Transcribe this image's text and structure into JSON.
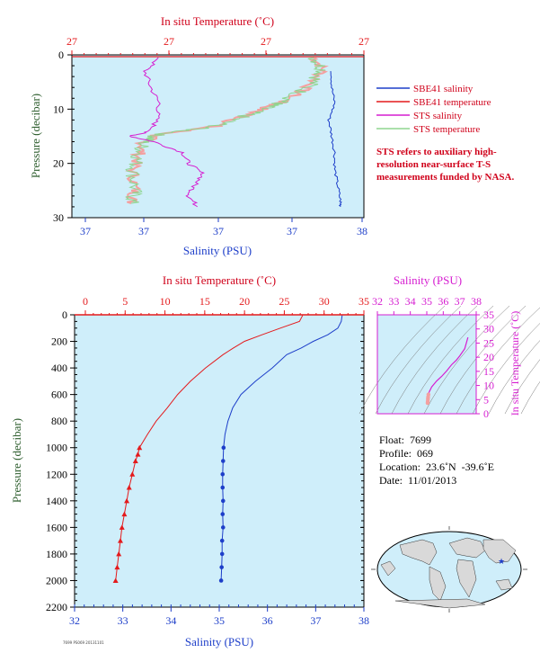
{
  "colors": {
    "panel_bg": "#cfeefa",
    "salinity": "#1d3ec9",
    "temperature": "#e41a1c",
    "sts_salinity": "#d61fd1",
    "sts_temperature": "#8fd58f",
    "sts_temp_pink": "#f4a0a0",
    "pressure_axis": "#2e5e2e",
    "map_land": "#d9d9d9",
    "map_ocean": "#cfeefa"
  },
  "top_chart": {
    "top_axis_label": "In situ Temperature (˚C)",
    "top_ticks": [
      "27",
      "27",
      "27",
      "27"
    ],
    "bottom_axis_label": "Salinity (PSU)",
    "bottom_ticks": [
      "37",
      "37",
      "37",
      "37",
      "38"
    ],
    "y_axis_label": "Pressure (decibar)",
    "y_ticks": [
      "0",
      "10",
      "20",
      "30"
    ],
    "legend": [
      {
        "label": "SBE41 salinity",
        "color": "#1d3ec9"
      },
      {
        "label": "SBE41 temperature",
        "color": "#e41a1c"
      },
      {
        "label": "STS salinity",
        "color": "#d61fd1"
      },
      {
        "label": "STS temperature",
        "color": "#8fd58f"
      }
    ],
    "note": "STS refers to auxiliary high-resolution near-surface T-S measurements funded by NASA."
  },
  "main_chart": {
    "top_axis_label": "In situ Temperature (˚C)",
    "top_ticks": [
      "0",
      "5",
      "10",
      "15",
      "20",
      "25",
      "30",
      "35"
    ],
    "bottom_axis_label": "Salinity (PSU)",
    "bottom_ticks": [
      "32",
      "33",
      "34",
      "35",
      "36",
      "37",
      "38"
    ],
    "y_axis_label": "Pressure (decibar)",
    "y_ticks": [
      "0",
      "200",
      "400",
      "600",
      "800",
      "1000",
      "1200",
      "1400",
      "1600",
      "1800",
      "2000",
      "2200"
    ]
  },
  "ts_chart": {
    "top_axis_label": "Salinity (PSU)",
    "top_ticks": [
      "32",
      "33",
      "34",
      "35",
      "36",
      "37",
      "38"
    ],
    "right_axis_label": "In situ Temperature (˚C)",
    "right_ticks": [
      "0",
      "5",
      "10",
      "15",
      "20",
      "25",
      "30",
      "35"
    ]
  },
  "float_info": {
    "float": "Float:  7699",
    "profile": "Profile:  069",
    "location": "Location:  23.6˚N  -39.6˚E",
    "date": "Date:  11/01/2013"
  },
  "footer_stamp": "7699 PS069 20131101",
  "chart_data": [
    {
      "type": "line",
      "panel": "near-surface profile",
      "x_axis": "Salinity (PSU)",
      "xlim": [
        37,
        38
      ],
      "ylim": [
        30,
        0
      ],
      "series": [
        {
          "name": "SBE41 salinity",
          "pressure": [
            3,
            6,
            9,
            12,
            15,
            18,
            21,
            24,
            27,
            28
          ],
          "values": [
            37.89,
            37.89,
            37.9,
            37.88,
            37.89,
            37.9,
            37.9,
            37.91,
            37.92,
            37.92
          ]
        },
        {
          "name": "STS salinity",
          "pressure": [
            0.5,
            3,
            6,
            9,
            12,
            14,
            15,
            16,
            18,
            20,
            22,
            24,
            26,
            28
          ],
          "values": [
            37.3,
            37.25,
            37.27,
            37.3,
            37.29,
            37.27,
            37.2,
            37.28,
            37.38,
            37.4,
            37.45,
            37.42,
            37.4,
            37.43
          ]
        }
      ]
    },
    {
      "type": "line",
      "panel": "full profile",
      "x_axis": "Salinity (PSU) / In situ Temperature (˚C)",
      "salinity_xlim": [
        32,
        38
      ],
      "temperature_xlim": [
        0,
        35
      ],
      "ylim": [
        2200,
        0
      ],
      "series": [
        {
          "name": "Salinity",
          "pressure": [
            5,
            50,
            100,
            150,
            200,
            250,
            300,
            400,
            500,
            600,
            700,
            800,
            900,
            1000,
            1100,
            1200,
            1300,
            1400,
            1500,
            1600,
            1700,
            1800,
            1900,
            2000
          ],
          "values": [
            37.55,
            37.53,
            37.46,
            37.25,
            36.95,
            36.7,
            36.4,
            36.1,
            35.75,
            35.45,
            35.28,
            35.18,
            35.12,
            35.09,
            35.08,
            35.07,
            35.07,
            35.08,
            35.07,
            35.08,
            35.06,
            35.06,
            35.05,
            35.04
          ]
        },
        {
          "name": "Temperature",
          "pressure": [
            5,
            50,
            100,
            150,
            200,
            250,
            300,
            400,
            500,
            600,
            700,
            800,
            900,
            1000,
            1050,
            1100,
            1200,
            1300,
            1400,
            1500,
            1600,
            1700,
            1800,
            1900,
            2000
          ],
          "values": [
            27.3,
            26.9,
            24.5,
            22.2,
            20.0,
            18.6,
            17.3,
            15.1,
            13.2,
            11.6,
            10.3,
            8.9,
            7.8,
            6.8,
            6.6,
            6.3,
            5.9,
            5.5,
            5.2,
            4.9,
            4.6,
            4.4,
            4.2,
            4.0,
            3.8
          ]
        }
      ]
    },
    {
      "type": "scatter",
      "panel": "T-S diagram",
      "x_axis": "Salinity (PSU)",
      "y_axis": "In situ Temperature (˚C)",
      "xlim": [
        32,
        38
      ],
      "ylim": [
        0,
        35
      ],
      "x": [
        35.05,
        35.06,
        35.07,
        35.08,
        35.1,
        35.15,
        35.3,
        35.6,
        35.9,
        36.2,
        36.5,
        36.8,
        37.0,
        37.3,
        37.5
      ],
      "y": [
        3.8,
        4.4,
        5.2,
        5.9,
        6.8,
        7.8,
        9.5,
        11.6,
        13.2,
        15.1,
        17.3,
        19.0,
        20.5,
        23.0,
        27.0
      ]
    }
  ]
}
